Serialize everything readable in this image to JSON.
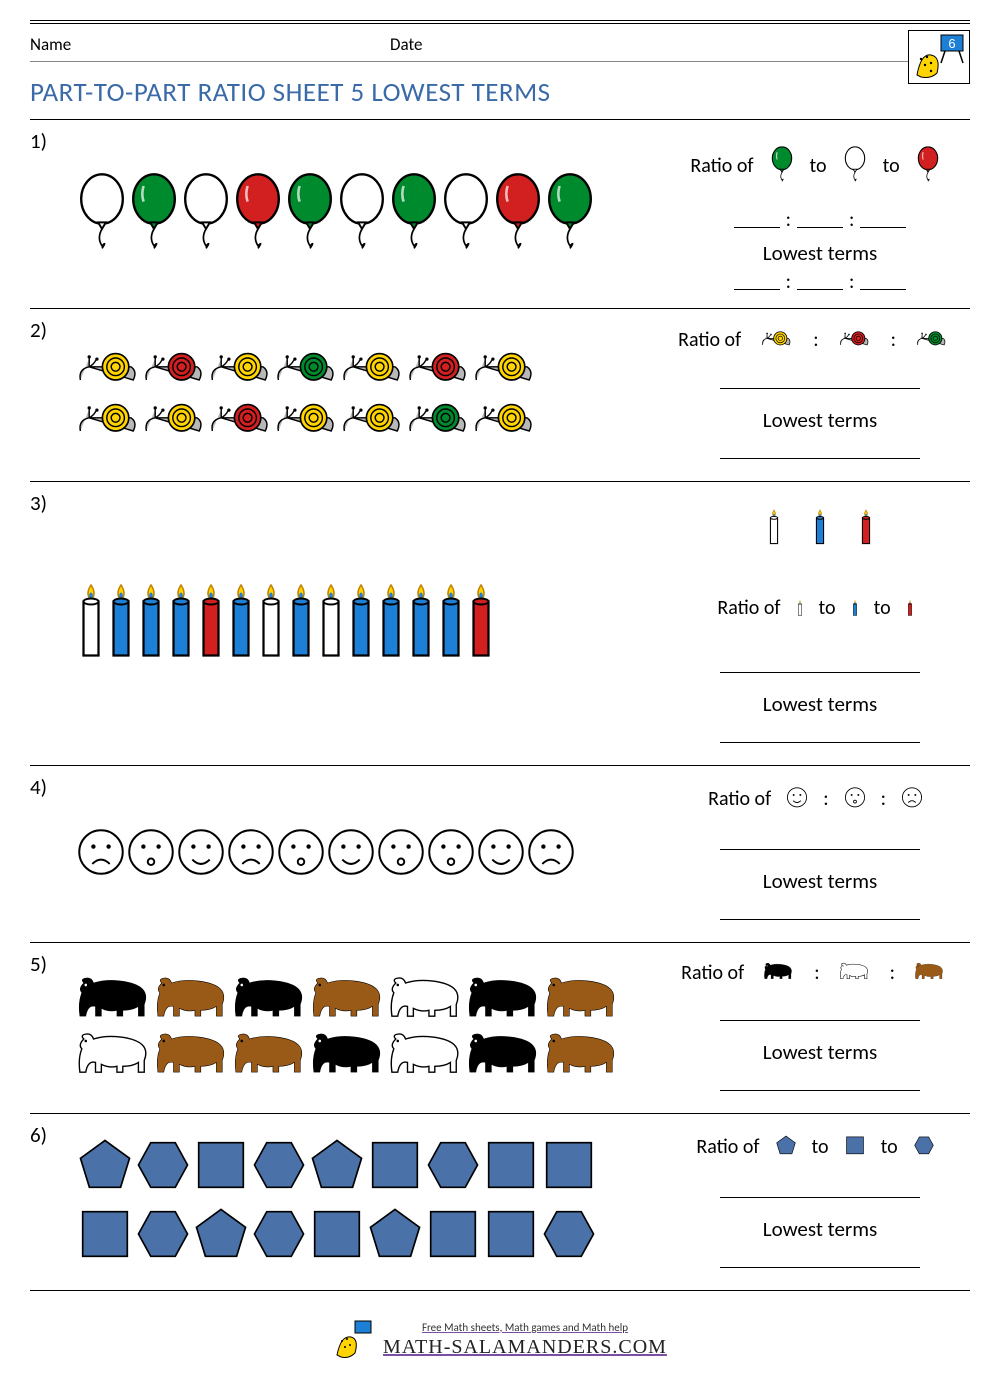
{
  "header": {
    "name_label": "Name",
    "date_label": "Date",
    "grade_badge": "6"
  },
  "title": "PART-TO-PART RATIO SHEET 5 LOWEST TERMS",
  "labels": {
    "ratio_of": "Ratio of",
    "to": "to",
    "lowest_terms": "Lowest terms"
  },
  "colors": {
    "title": "#3a6aa8",
    "green": "#008a2e",
    "red": "#d21f1f",
    "white": "#ffffff",
    "yellow": "#ffd400",
    "blue": "#1e7fd6",
    "brown": "#9a5a17",
    "black": "#000000",
    "polar": "#ffffff",
    "shape_blue": "#4a72a8",
    "snail_body": "#b8b8b8"
  },
  "problems": [
    {
      "n": "1)",
      "type": "balloons",
      "items": [
        [
          "white",
          "green",
          "white",
          "red",
          "green",
          "white",
          "green",
          "white",
          "red",
          "green"
        ]
      ],
      "ratio_icons": [
        "green",
        "white",
        "red"
      ],
      "answer_style": "triple"
    },
    {
      "n": "2)",
      "type": "snails",
      "items": [
        [
          "yellow",
          "red",
          "yellow",
          "green",
          "yellow",
          "red",
          "yellow"
        ],
        [
          "yellow",
          "yellow",
          "red",
          "yellow",
          "yellow",
          "green",
          "yellow"
        ]
      ],
      "ratio_icons": [
        "yellow",
        "red",
        "green"
      ],
      "answer_style": "long"
    },
    {
      "n": "3)",
      "type": "candles",
      "items": [
        [
          "white",
          "blue",
          "blue",
          "blue",
          "red",
          "blue",
          "white",
          "blue",
          "white",
          "blue",
          "blue",
          "blue",
          "blue",
          "red"
        ]
      ],
      "ratio_icons": [
        "white",
        "blue",
        "red"
      ],
      "answer_style": "long",
      "icons_above": true
    },
    {
      "n": "4)",
      "type": "faces",
      "items": [
        [
          "sad",
          "open",
          "smile",
          "sad",
          "open",
          "smile",
          "open",
          "open",
          "smile",
          "sad"
        ]
      ],
      "ratio_icons": [
        "smile",
        "open",
        "sad"
      ],
      "answer_style": "long"
    },
    {
      "n": "5)",
      "type": "bears",
      "items": [
        [
          "black",
          "brown",
          "black",
          "brown",
          "polar",
          "black",
          "brown"
        ],
        [
          "polar",
          "brown",
          "brown",
          "black",
          "polar",
          "black",
          "brown"
        ]
      ],
      "ratio_icons": [
        "black",
        "polar",
        "brown"
      ],
      "answer_style": "long"
    },
    {
      "n": "6)",
      "type": "shapes",
      "items": [
        [
          "pentagon",
          "hexagon",
          "square",
          "hexagon",
          "pentagon",
          "square",
          "hexagon",
          "square",
          "square"
        ],
        [
          "square",
          "hexagon",
          "pentagon",
          "hexagon",
          "square",
          "pentagon",
          "square",
          "square",
          "hexagon"
        ]
      ],
      "ratio_icons": [
        "pentagon",
        "square",
        "hexagon"
      ],
      "answer_style": "long"
    }
  ],
  "footer": {
    "tagline": "Free Math sheets, Math games and Math help",
    "site": "MATH-SALAMANDERS.COM"
  }
}
